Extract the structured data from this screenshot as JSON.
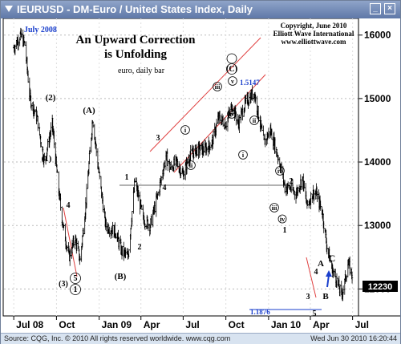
{
  "window": {
    "title": "IEURUSD - DM-Euro / United States Index, Daily"
  },
  "footer": {
    "left": "Source: CQG, Inc. © 2010 All rights reserved worldwide. www.cqg.com",
    "right": "Wed Jun 30 2010 16:20:44"
  },
  "annotations": {
    "headline1": "An Upward Correction",
    "headline2": "is Unfolding",
    "subtitle": "euro, daily bar",
    "copyright1": "Copyright, June 2010",
    "copyright2": "Elliott Wave International",
    "copyright3": "www.elliottwave.com",
    "top_label": "July 2008",
    "high_label": "1.5147",
    "low_label": "1.1876"
  },
  "colors": {
    "bars": "#000000",
    "channel": "#e04040",
    "grid": "#888888",
    "pointer": "#1a3fcc",
    "price_box": "#000000",
    "titlebar": "#5f78a8"
  },
  "chart_data": {
    "type": "line",
    "style": "ohlc daily bars",
    "ylim": [
      1.16,
      1.63
    ],
    "y_ticks": [
      12000,
      13000,
      14000,
      15000,
      16000
    ],
    "x_tick_labels": [
      "Jul 08",
      "Oct",
      "Jan 09",
      "Apr",
      "Jul",
      "Oct",
      "Jan 10",
      "Apr",
      "Jul"
    ],
    "last_price_label": "12230",
    "series": [
      {
        "x": [
          "2008-07-01",
          "2008-07-15",
          "2008-07-25",
          "2008-08-05",
          "2008-08-20",
          "2008-09-05",
          "2008-09-22",
          "2008-10-05",
          "2008-10-15",
          "2008-10-28",
          "2008-11-10",
          "2008-11-21",
          "2008-12-04",
          "2008-12-18",
          "2008-12-30",
          "2009-01-15",
          "2009-02-05",
          "2009-02-18",
          "2009-03-04",
          "2009-03-19",
          "2009-04-06",
          "2009-04-21",
          "2009-05-08",
          "2009-05-25",
          "2009-06-03",
          "2009-06-16",
          "2009-07-01",
          "2009-07-15",
          "2009-08-01",
          "2009-08-17",
          "2009-09-01",
          "2009-09-15",
          "2009-10-01",
          "2009-10-15",
          "2009-10-28",
          "2009-11-10",
          "2009-11-25",
          "2009-12-01",
          "2009-12-14",
          "2009-12-22",
          "2010-01-05",
          "2010-01-13",
          "2010-01-28",
          "2010-02-05",
          "2010-02-15",
          "2010-03-01",
          "2010-03-15",
          "2010-03-25",
          "2010-04-05",
          "2010-04-14",
          "2010-04-27",
          "2010-05-06",
          "2010-05-18",
          "2010-05-25",
          "2010-06-07",
          "2010-06-14",
          "2010-06-21",
          "2010-06-30"
        ],
        "values": [
          1.58,
          1.6,
          1.585,
          1.5,
          1.47,
          1.4,
          1.46,
          1.36,
          1.3,
          1.25,
          1.28,
          1.245,
          1.34,
          1.47,
          1.39,
          1.3,
          1.29,
          1.26,
          1.25,
          1.37,
          1.31,
          1.3,
          1.35,
          1.41,
          1.39,
          1.4,
          1.38,
          1.41,
          1.42,
          1.42,
          1.43,
          1.47,
          1.46,
          1.49,
          1.46,
          1.49,
          1.505,
          1.51,
          1.46,
          1.43,
          1.45,
          1.43,
          1.39,
          1.36,
          1.36,
          1.35,
          1.375,
          1.33,
          1.35,
          1.35,
          1.32,
          1.27,
          1.23,
          1.22,
          1.19,
          1.21,
          1.24,
          1.223
        ]
      }
    ],
    "wave_labels": [
      "(2)",
      "(1)",
      "4",
      "(3)",
      "5",
      "1",
      "(A)",
      "(B)",
      "1",
      "2",
      "3",
      "4",
      "i",
      "ii",
      "iii",
      "iv",
      "v",
      "2",
      "(C)",
      "iv",
      "i",
      "ii",
      "iii",
      "iv",
      "v",
      "1",
      "2",
      "3",
      "4",
      "5",
      "A",
      "B",
      "C"
    ]
  }
}
